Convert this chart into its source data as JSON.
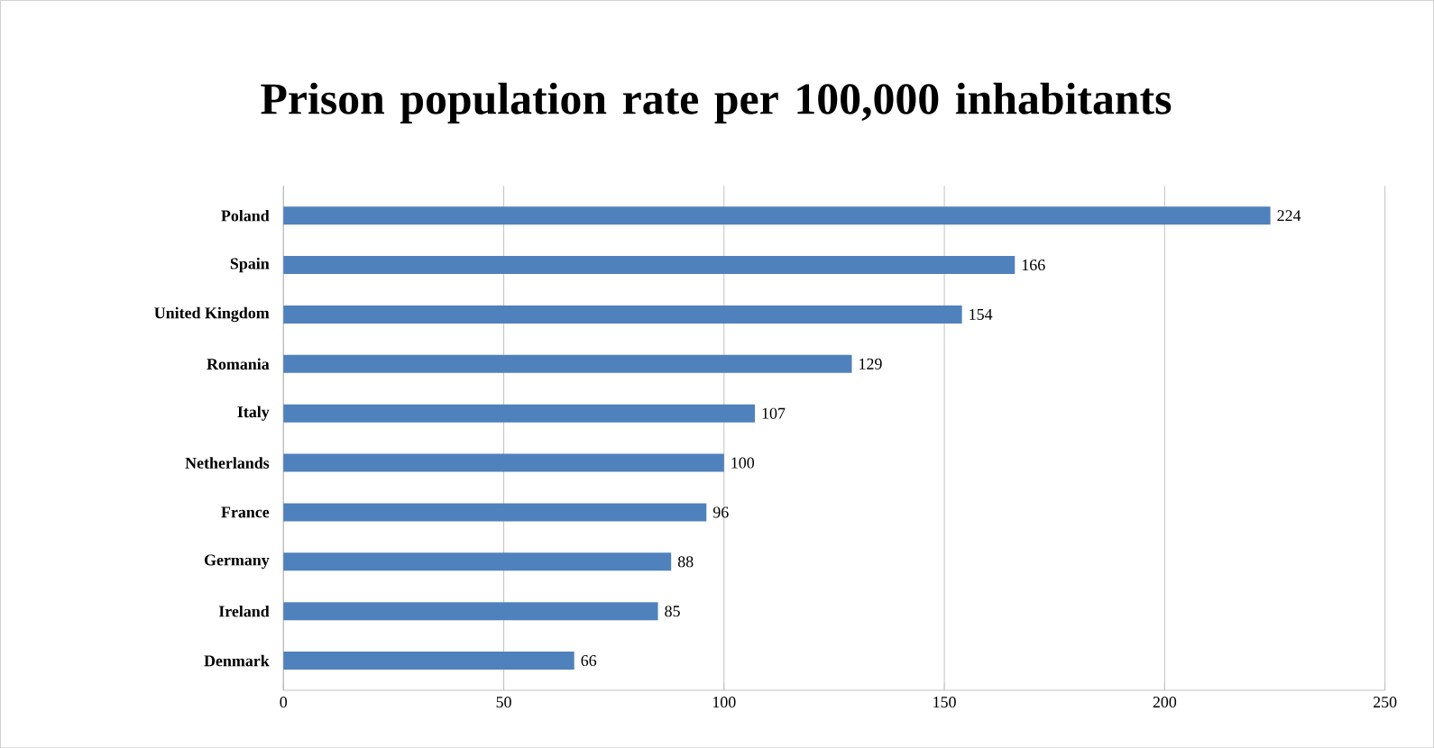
{
  "chart_data": {
    "type": "bar",
    "orientation": "horizontal",
    "title": "Prison population rate per 100,000 inhabitants",
    "categories": [
      "Poland",
      "Spain",
      "United Kingdom",
      "Romania",
      "Italy",
      "Netherlands",
      "France",
      "Germany",
      "Ireland",
      "Denmark"
    ],
    "values": [
      224,
      166,
      154,
      129,
      107,
      100,
      96,
      88,
      85,
      66
    ],
    "color": "#4f81bd",
    "xlim": [
      0,
      250
    ],
    "xticks": [
      0,
      50,
      100,
      150,
      200,
      250
    ],
    "grid": "x",
    "data_labels": true
  }
}
